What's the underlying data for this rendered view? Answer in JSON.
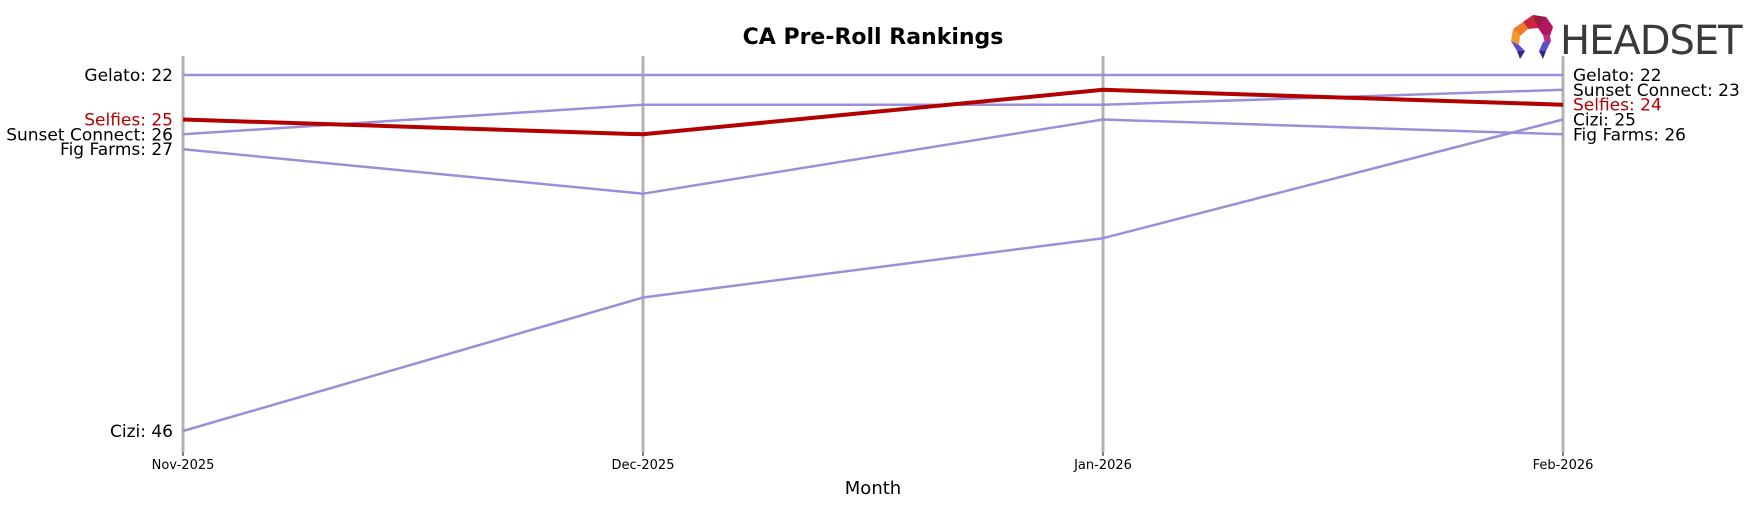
{
  "header": {
    "title": "CA Pre-Roll Rankings",
    "logo_text": "HEADSET"
  },
  "colors": {
    "highlight": "#b30000",
    "other": "#9b8fd9",
    "gridline": "#b3b3b3"
  },
  "chart_data": {
    "type": "line",
    "title": "CA Pre-Roll Rankings",
    "xlabel": "Month",
    "ylabel": "",
    "categories": [
      "Nov-2025",
      "Dec-2025",
      "Jan-2026",
      "Feb-2026"
    ],
    "y_inverted": true,
    "ylim": [
      22,
      46
    ],
    "grid": "vertical lines at each month",
    "series": [
      {
        "name": "Gelato",
        "values": [
          22,
          22,
          22,
          22
        ],
        "highlight": false
      },
      {
        "name": "Sunset Connect",
        "values": [
          26,
          24,
          24,
          23
        ],
        "highlight": false
      },
      {
        "name": "Fig Farms",
        "values": [
          27,
          30,
          25,
          26
        ],
        "highlight": false
      },
      {
        "name": "Cizi",
        "values": [
          46,
          37,
          33,
          25
        ],
        "highlight": false
      },
      {
        "name": "Selfies",
        "values": [
          25,
          26,
          23,
          24
        ],
        "highlight": true
      }
    ],
    "left_labels": [
      {
        "text": "Gelato: 22",
        "rank": 22,
        "highlight": false
      },
      {
        "text": "Selfies: 25",
        "rank": 25,
        "highlight": true
      },
      {
        "text": "Sunset Connect: 26",
        "rank": 26,
        "highlight": false
      },
      {
        "text": "Fig Farms: 27",
        "rank": 27,
        "highlight": false
      },
      {
        "text": "Cizi: 46",
        "rank": 46,
        "highlight": false
      }
    ],
    "right_labels": [
      {
        "text": "Gelato: 22",
        "rank": 22,
        "highlight": false
      },
      {
        "text": "Sunset Connect: 23",
        "rank": 23,
        "highlight": false
      },
      {
        "text": "Selfies: 24",
        "rank": 24,
        "highlight": true
      },
      {
        "text": "Cizi: 25",
        "rank": 25,
        "highlight": false
      },
      {
        "text": "Fig Farms: 26",
        "rank": 26,
        "highlight": false
      }
    ]
  }
}
